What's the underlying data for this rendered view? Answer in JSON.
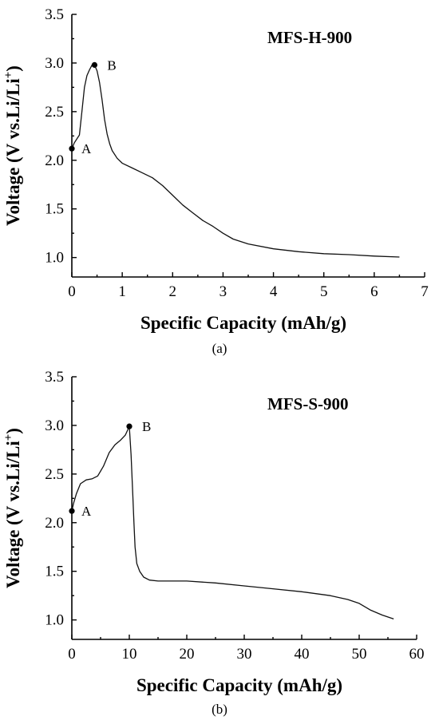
{
  "chart_data": [
    {
      "type": "line",
      "caption": "(a)",
      "annotation": "MFS-H-900",
      "xlabel": "Specific Capacity (mAh/g)",
      "ylabel": "Voltage (V vs.Li/Li+)",
      "xlim": [
        0,
        7
      ],
      "ylim": [
        0.8,
        3.5
      ],
      "xticks": [
        0,
        1,
        2,
        3,
        4,
        5,
        6,
        7
      ],
      "yticks": [
        1.0,
        1.5,
        2.0,
        2.5,
        3.0,
        3.5
      ],
      "grid": false,
      "series": [
        {
          "x": [
            0,
            0.05,
            0.1,
            0.15,
            0.2,
            0.25,
            0.3,
            0.35,
            0.4,
            0.45,
            0.5,
            0.55,
            0.6,
            0.65,
            0.7,
            0.75,
            0.8,
            0.9,
            1.0,
            1.2,
            1.4,
            1.6,
            1.8,
            2.0,
            2.2,
            2.4,
            2.6,
            2.8,
            3.0,
            3.2,
            3.5,
            4.0,
            4.5,
            5.0,
            5.5,
            6.0,
            6.5
          ],
          "y": [
            2.12,
            2.18,
            2.22,
            2.26,
            2.5,
            2.75,
            2.87,
            2.93,
            2.98,
            2.98,
            2.92,
            2.8,
            2.62,
            2.42,
            2.27,
            2.17,
            2.1,
            2.02,
            1.97,
            1.92,
            1.87,
            1.82,
            1.74,
            1.64,
            1.54,
            1.46,
            1.38,
            1.32,
            1.25,
            1.19,
            1.14,
            1.09,
            1.06,
            1.04,
            1.03,
            1.015,
            1.005
          ]
        }
      ],
      "points": [
        {
          "label": "A",
          "x": 0.0,
          "y": 2.12
        },
        {
          "label": "B",
          "x": 0.45,
          "y": 2.98
        }
      ]
    },
    {
      "type": "line",
      "caption": "(b)",
      "annotation": "MFS-S-900",
      "xlabel": "Specific Capacity (mAh/g)",
      "ylabel": "Voltage (V vs.Li/Li+)",
      "xlim": [
        0,
        60
      ],
      "ylim": [
        0.8,
        3.5
      ],
      "xticks": [
        0,
        10,
        20,
        30,
        40,
        50,
        60
      ],
      "yticks": [
        1.0,
        1.5,
        2.0,
        2.5,
        3.0,
        3.5
      ],
      "grid": false,
      "series": [
        {
          "x": [
            0,
            0.3,
            0.8,
            1.5,
            2.5,
            3.5,
            4.5,
            5.5,
            6.5,
            7.5,
            8.5,
            9.3,
            10,
            10.3,
            10.6,
            10.8,
            11,
            11.3,
            11.8,
            12.5,
            13.5,
            15,
            20,
            25,
            30,
            35,
            40,
            45,
            48,
            50,
            52,
            54,
            56
          ],
          "y": [
            2.12,
            2.2,
            2.3,
            2.4,
            2.44,
            2.45,
            2.48,
            2.58,
            2.72,
            2.8,
            2.85,
            2.9,
            2.99,
            2.7,
            2.3,
            2.0,
            1.75,
            1.58,
            1.5,
            1.44,
            1.41,
            1.4,
            1.4,
            1.38,
            1.35,
            1.32,
            1.29,
            1.25,
            1.21,
            1.17,
            1.1,
            1.05,
            1.01
          ]
        }
      ],
      "points": [
        {
          "label": "A",
          "x": 0.0,
          "y": 2.12
        },
        {
          "label": "B",
          "x": 10.0,
          "y": 2.99
        }
      ]
    }
  ],
  "y_title_main": "Voltage (V vs.Li/Li",
  "y_title_sup": "+",
  "y_title_end": ")"
}
